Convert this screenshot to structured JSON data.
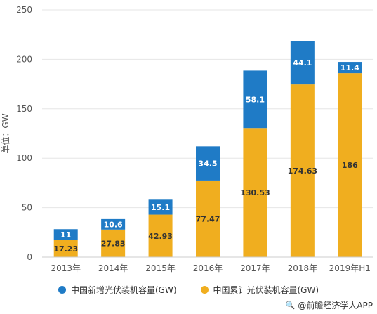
{
  "chart_data": {
    "type": "bar",
    "stacked": true,
    "categories": [
      "2013年",
      "2014年",
      "2015年",
      "2016年",
      "2017年",
      "2018年",
      "2019年H1"
    ],
    "series": [
      {
        "name": "中国累计光伏装机容量(GW)",
        "color": "#f0ae1f",
        "values": [
          17.23,
          27.83,
          42.93,
          77.47,
          130.53,
          174.63,
          186
        ],
        "labels": [
          "17.23",
          "27.83",
          "42.93",
          "77.47",
          "130.53",
          "174.63",
          "186"
        ]
      },
      {
        "name": "中国新增光伏装机容量(GW)",
        "color": "#1f7bc6",
        "values": [
          11,
          10.6,
          15.1,
          34.5,
          58.1,
          44.1,
          11.4
        ],
        "labels": [
          "11",
          "10.6",
          "15.1",
          "34.5",
          "58.1",
          "44.1",
          "11.4"
        ]
      }
    ],
    "ylabel": "单位：GW",
    "ylim": [
      0,
      250
    ],
    "yticks": [
      0,
      50,
      100,
      150,
      200,
      250
    ],
    "grid": true,
    "legend_position": "bottom"
  },
  "legend": [
    {
      "label": "中国新增光伏装机容量(GW)",
      "color": "#1f7bc6"
    },
    {
      "label": "中国累计光伏装机容量(GW)",
      "color": "#f0ae1f"
    }
  ],
  "source": {
    "icon": "magnifier-icon",
    "text": "@前瞻经济学人APP"
  }
}
